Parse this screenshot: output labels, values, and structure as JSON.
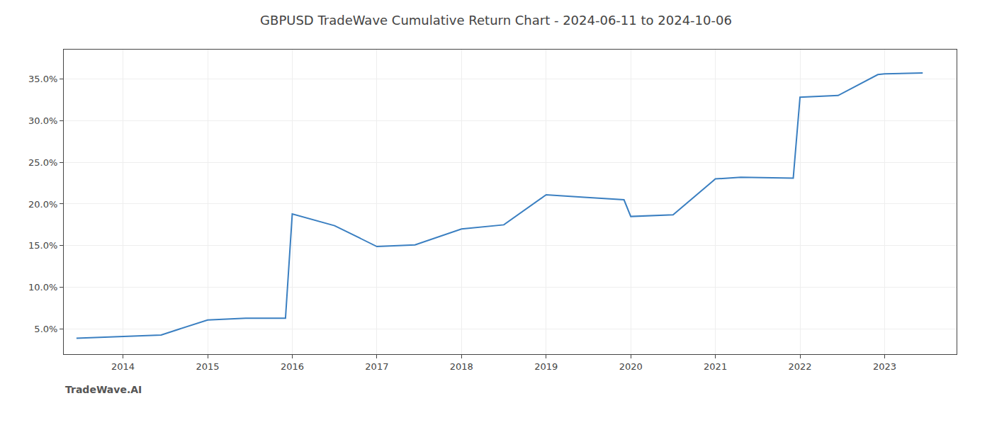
{
  "chart_data": {
    "type": "line",
    "title": "GBPUSD TradeWave Cumulative Return Chart - 2024-06-11 to 2024-10-06",
    "annotations": [
      "TradeWave.AI"
    ],
    "x": [
      2013.45,
      2014.0,
      2014.45,
      2015.0,
      2015.45,
      2015.92,
      2016.0,
      2016.5,
      2017.0,
      2017.45,
      2018.0,
      2018.5,
      2019.0,
      2019.45,
      2019.92,
      2020.0,
      2020.5,
      2021.0,
      2021.3,
      2021.92,
      2022.0,
      2022.45,
      2022.92,
      2023.0,
      2023.45
    ],
    "values": [
      3.9,
      4.1,
      4.3,
      6.1,
      6.3,
      6.3,
      18.8,
      17.4,
      14.9,
      15.1,
      17.0,
      17.5,
      21.1,
      20.8,
      20.5,
      18.5,
      18.7,
      23.0,
      23.2,
      23.1,
      32.8,
      33.0,
      35.5,
      35.6,
      35.7
    ],
    "color": "#3a7fc1",
    "xlim": [
      2013.3,
      2023.85
    ],
    "xticks": [
      2014,
      2015,
      2016,
      2017,
      2018,
      2019,
      2020,
      2021,
      2022,
      2023
    ],
    "ylim": [
      2.0,
      38.5
    ],
    "yticks": [
      {
        "value": 5.0,
        "label": "5.0%"
      },
      {
        "value": 10.0,
        "label": "10.0%"
      },
      {
        "value": 15.0,
        "label": "15.0%"
      },
      {
        "value": 20.0,
        "label": "20.0%"
      },
      {
        "value": 25.0,
        "label": "25.0%"
      },
      {
        "value": 30.0,
        "label": "30.0%"
      },
      {
        "value": 35.0,
        "label": "35.0%"
      }
    ],
    "grid": true
  }
}
